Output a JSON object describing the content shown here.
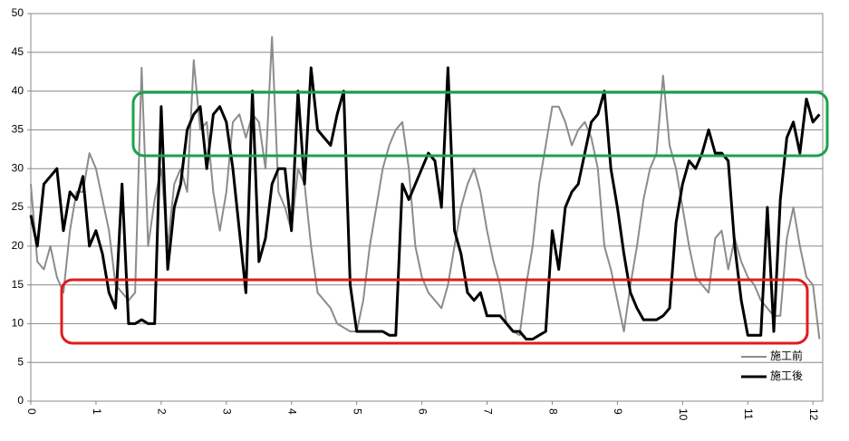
{
  "chart_data": {
    "type": "line",
    "x": [
      0,
      0.1,
      0.2,
      0.3,
      0.4,
      0.5,
      0.6,
      0.7,
      0.8,
      0.9,
      1,
      1.1,
      1.2,
      1.3,
      1.4,
      1.5,
      1.6,
      1.7,
      1.8,
      1.9,
      2,
      2.1,
      2.2,
      2.3,
      2.4,
      2.5,
      2.6,
      2.7,
      2.8,
      2.9,
      3,
      3.1,
      3.2,
      3.3,
      3.4,
      3.5,
      3.6,
      3.7,
      3.8,
      3.9,
      4,
      4.1,
      4.2,
      4.3,
      4.4,
      4.5,
      4.6,
      4.7,
      4.8,
      4.9,
      5,
      5.1,
      5.2,
      5.3,
      5.4,
      5.5,
      5.6,
      5.7,
      5.8,
      5.9,
      6,
      6.1,
      6.2,
      6.3,
      6.4,
      6.5,
      6.6,
      6.7,
      6.8,
      6.9,
      7,
      7.1,
      7.2,
      7.3,
      7.4,
      7.5,
      7.6,
      7.7,
      7.8,
      7.9,
      8,
      8.1,
      8.2,
      8.3,
      8.4,
      8.5,
      8.6,
      8.7,
      8.8,
      8.9,
      9,
      9.1,
      9.2,
      9.3,
      9.4,
      9.5,
      9.6,
      9.7,
      9.8,
      9.9,
      10,
      10.1,
      10.2,
      10.3,
      10.4,
      10.5,
      10.6,
      10.7,
      10.8,
      10.9,
      11,
      11.1,
      11.2,
      11.3,
      11.4,
      11.5,
      11.6,
      11.7,
      11.8,
      11.9,
      12,
      12.1
    ],
    "series": [
      {
        "name": "施工前",
        "color": "#8c8c8c",
        "values": [
          28,
          18,
          17,
          20,
          16,
          14,
          22,
          27,
          27,
          32,
          30,
          26,
          22,
          15,
          14,
          13,
          14,
          43,
          20,
          26,
          30,
          20,
          28,
          30,
          27,
          44,
          35,
          36,
          27,
          22,
          27,
          36,
          37,
          34,
          37,
          36,
          30,
          47,
          27,
          25,
          22,
          30,
          28,
          20,
          14,
          13,
          12,
          10,
          9.5,
          9,
          9,
          13,
          20,
          25,
          30,
          33,
          35,
          36,
          30,
          20,
          16,
          14,
          13,
          12,
          15,
          20,
          25,
          28,
          30,
          27,
          22,
          18,
          15,
          10,
          9,
          8.5,
          15,
          20,
          28,
          33,
          38,
          38,
          36,
          33,
          35,
          36,
          34,
          30,
          20,
          17,
          13,
          9,
          15,
          20,
          26,
          30,
          32,
          42,
          33,
          30,
          25,
          20,
          16,
          15,
          14,
          21,
          22,
          17,
          21,
          18,
          16,
          15,
          13,
          12,
          11,
          11,
          21,
          25,
          20,
          16,
          15,
          8
        ]
      },
      {
        "name": "施工後",
        "color": "#000000",
        "values": [
          24,
          20,
          28,
          29,
          30,
          22,
          27,
          26,
          29,
          20,
          22,
          19,
          14,
          12,
          28,
          10,
          10,
          10.5,
          10,
          10,
          38,
          17,
          25,
          28,
          35,
          37,
          38,
          30,
          37,
          38,
          36,
          30,
          22,
          14,
          40,
          18,
          21,
          28,
          30,
          30,
          22,
          40,
          28,
          43,
          35,
          34,
          33,
          37,
          40,
          15,
          9,
          9,
          9,
          9,
          9,
          8.5,
          8.5,
          28,
          26,
          28,
          30,
          32,
          31,
          25,
          43,
          22,
          19,
          14,
          13,
          14,
          11,
          11,
          11,
          10,
          9,
          9,
          8,
          8,
          8.5,
          9,
          22,
          17,
          25,
          27,
          28,
          32,
          36,
          37,
          40,
          30,
          25,
          19,
          14,
          12,
          10.5,
          10.5,
          10.5,
          11,
          12,
          23,
          28,
          31,
          30,
          32,
          35,
          32,
          32,
          31,
          20,
          13,
          8.5,
          8.5,
          8.5,
          25,
          9,
          26,
          34,
          36,
          32,
          39,
          36,
          37
        ]
      }
    ],
    "xlim": [
      0,
      12.15
    ],
    "xticks": [
      0,
      1,
      2,
      3,
      4,
      5,
      6,
      7,
      8,
      9,
      10,
      11,
      12
    ],
    "ylim": [
      0,
      50
    ],
    "yticks": [
      0,
      5,
      10,
      15,
      20,
      25,
      30,
      35,
      40,
      45,
      50
    ],
    "grid": true,
    "legend": "lower right"
  }
}
